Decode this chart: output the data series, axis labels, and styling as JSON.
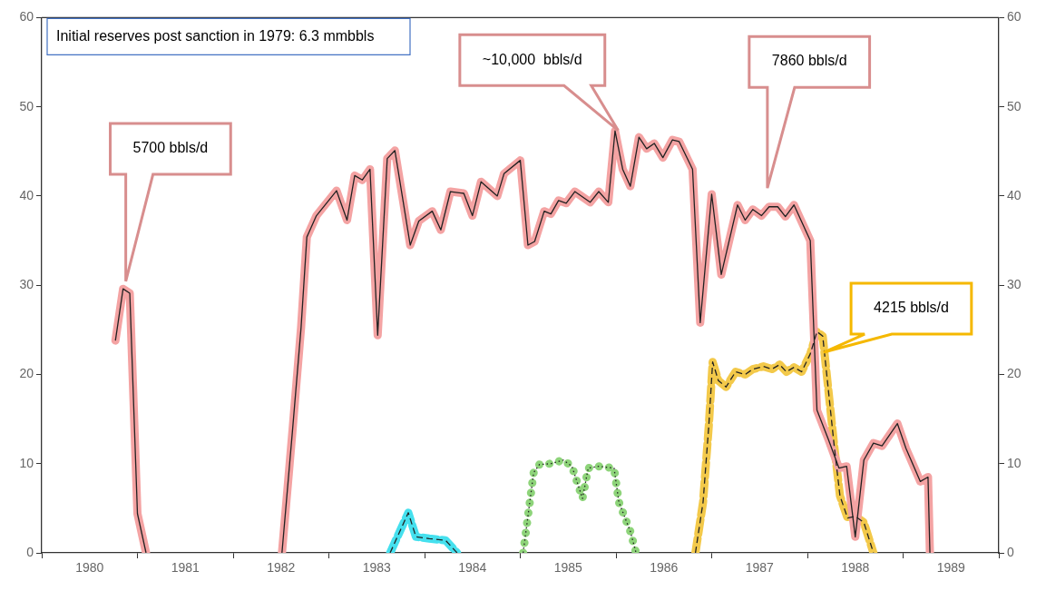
{
  "chart_data": {
    "type": "line",
    "xlim": [
      1980,
      1990
    ],
    "xticks": [
      {
        "value": 1980,
        "label": null
      },
      {
        "value": 1980.5,
        "label": "1980"
      },
      {
        "value": 1981,
        "label": null
      },
      {
        "value": 1981.5,
        "label": "1981"
      },
      {
        "value": 1982,
        "label": null
      },
      {
        "value": 1982.5,
        "label": "1982"
      },
      {
        "value": 1983,
        "label": null
      },
      {
        "value": 1983.5,
        "label": "1983"
      },
      {
        "value": 1984,
        "label": null
      },
      {
        "value": 1984.5,
        "label": "1984"
      },
      {
        "value": 1985,
        "label": null
      },
      {
        "value": 1985.5,
        "label": "1985"
      },
      {
        "value": 1986,
        "label": null
      },
      {
        "value": 1986.5,
        "label": "1986"
      },
      {
        "value": 1987,
        "label": null
      },
      {
        "value": 1987.5,
        "label": "1987"
      },
      {
        "value": 1988,
        "label": null
      },
      {
        "value": 1988.5,
        "label": "1988"
      },
      {
        "value": 1989,
        "label": null
      },
      {
        "value": 1989.5,
        "label": "1989"
      },
      {
        "value": 1990,
        "label": null
      }
    ],
    "ylim": [
      0,
      60
    ],
    "yticks": [
      0,
      10,
      20,
      30,
      40,
      50,
      60
    ],
    "y2lim": [
      0,
      60
    ],
    "y2ticks": [
      0,
      10,
      20,
      30,
      40,
      50,
      60
    ],
    "grid": false,
    "legend": false,
    "marker": "none",
    "series": [
      {
        "color": "#f4a3a3",
        "line_style": "solid",
        "x": [
          1980.77,
          1980.85,
          1980.92,
          1981.0,
          1981.09,
          1981.8,
          1982.51,
          1982.62,
          1982.71,
          1982.77,
          1982.87,
          1983.08,
          1983.19,
          1983.27,
          1983.35,
          1983.43,
          1983.51,
          1983.61,
          1983.69,
          1983.85,
          1983.94,
          1984.08,
          1984.17,
          1984.27,
          1984.41,
          1984.5,
          1984.59,
          1984.76,
          1984.83,
          1985.0,
          1985.08,
          1985.15,
          1985.25,
          1985.32,
          1985.4,
          1985.48,
          1985.57,
          1985.73,
          1985.82,
          1985.92,
          1985.99,
          1986.07,
          1986.15,
          1986.24,
          1986.32,
          1986.4,
          1986.49,
          1986.59,
          1986.66,
          1986.8,
          1986.88,
          1987.0,
          1987.1,
          1987.27,
          1987.35,
          1987.43,
          1987.52,
          1987.6,
          1987.69,
          1987.77,
          1987.86,
          1988.03,
          1988.1,
          1988.22,
          1988.33,
          1988.41,
          1988.5,
          1988.59,
          1988.69,
          1988.78,
          1988.94,
          1989.03,
          1989.18,
          1989.26,
          1989.28
        ],
        "values": [
          23.8,
          29.6,
          29.1,
          4.4,
          0,
          null,
          0,
          13.7,
          25.3,
          35.4,
          37.8,
          40.6,
          37.3,
          42.3,
          41.8,
          43.0,
          24.4,
          44.2,
          45.1,
          34.5,
          37.2,
          38.3,
          36.2,
          40.5,
          40.3,
          37.8,
          41.6,
          40.0,
          42.5,
          44.0,
          34.5,
          34.9,
          38.3,
          38.0,
          39.5,
          39.2,
          40.5,
          39.3,
          40.5,
          39.3,
          47.3,
          43.0,
          41.1,
          46.6,
          45.3,
          45.9,
          44.3,
          46.3,
          46.1,
          43.0,
          25.8,
          40.2,
          31.2,
          39.0,
          37.3,
          38.5,
          37.8,
          38.8,
          38.8,
          37.7,
          39.0,
          35.0,
          16.0,
          12.7,
          9.5,
          9.7,
          1.8,
          10.4,
          12.3,
          12.0,
          14.5,
          11.7,
          8.0,
          8.5,
          0
        ]
      },
      {
        "color": "#f3c94a",
        "line_style": "dashed",
        "x": [
          1986.83,
          1986.91,
          1986.97,
          1987.01,
          1987.07,
          1987.15,
          1987.25,
          1987.35,
          1987.43,
          1987.54,
          1987.63,
          1987.71,
          1987.78,
          1987.86,
          1987.94,
          1988.03,
          1988.1,
          1988.16,
          1988.28,
          1988.34,
          1988.42,
          1988.5,
          1988.59,
          1988.69
        ],
        "values": [
          0,
          5.7,
          14.3,
          21.4,
          19.3,
          18.6,
          20.3,
          20.0,
          20.6,
          20.9,
          20.6,
          21.1,
          20.3,
          20.8,
          20.3,
          22.3,
          24.8,
          24.3,
          12.0,
          6.4,
          3.9,
          4.1,
          3.4,
          0
        ]
      },
      {
        "color": "#45e0ee",
        "line_style": "dashed",
        "x": [
          1983.64,
          1983.83,
          1983.91,
          1984.05,
          1984.22,
          1984.34
        ],
        "values": [
          0,
          4.5,
          1.8,
          1.6,
          1.4,
          0
        ]
      },
      {
        "color": "#8ed47a",
        "line_style": "dotted",
        "x": [
          1985.03,
          1985.14,
          1985.2,
          1985.32,
          1985.45,
          1985.54,
          1985.65,
          1985.71,
          1985.82,
          1985.98,
          1986.03,
          1986.15,
          1986.21
        ],
        "values": [
          0,
          9.0,
          9.9,
          10.0,
          10.4,
          9.7,
          6.1,
          9.5,
          9.7,
          9.5,
          5.7,
          2.4,
          0
        ]
      }
    ],
    "annotations": [
      "Initial reserves post sanction in 1979: 6.3 mmbbls",
      "5700 bbls/d",
      "~10,000  bbls/d",
      "7860 bbls/d",
      "4215 bbls/d"
    ]
  }
}
